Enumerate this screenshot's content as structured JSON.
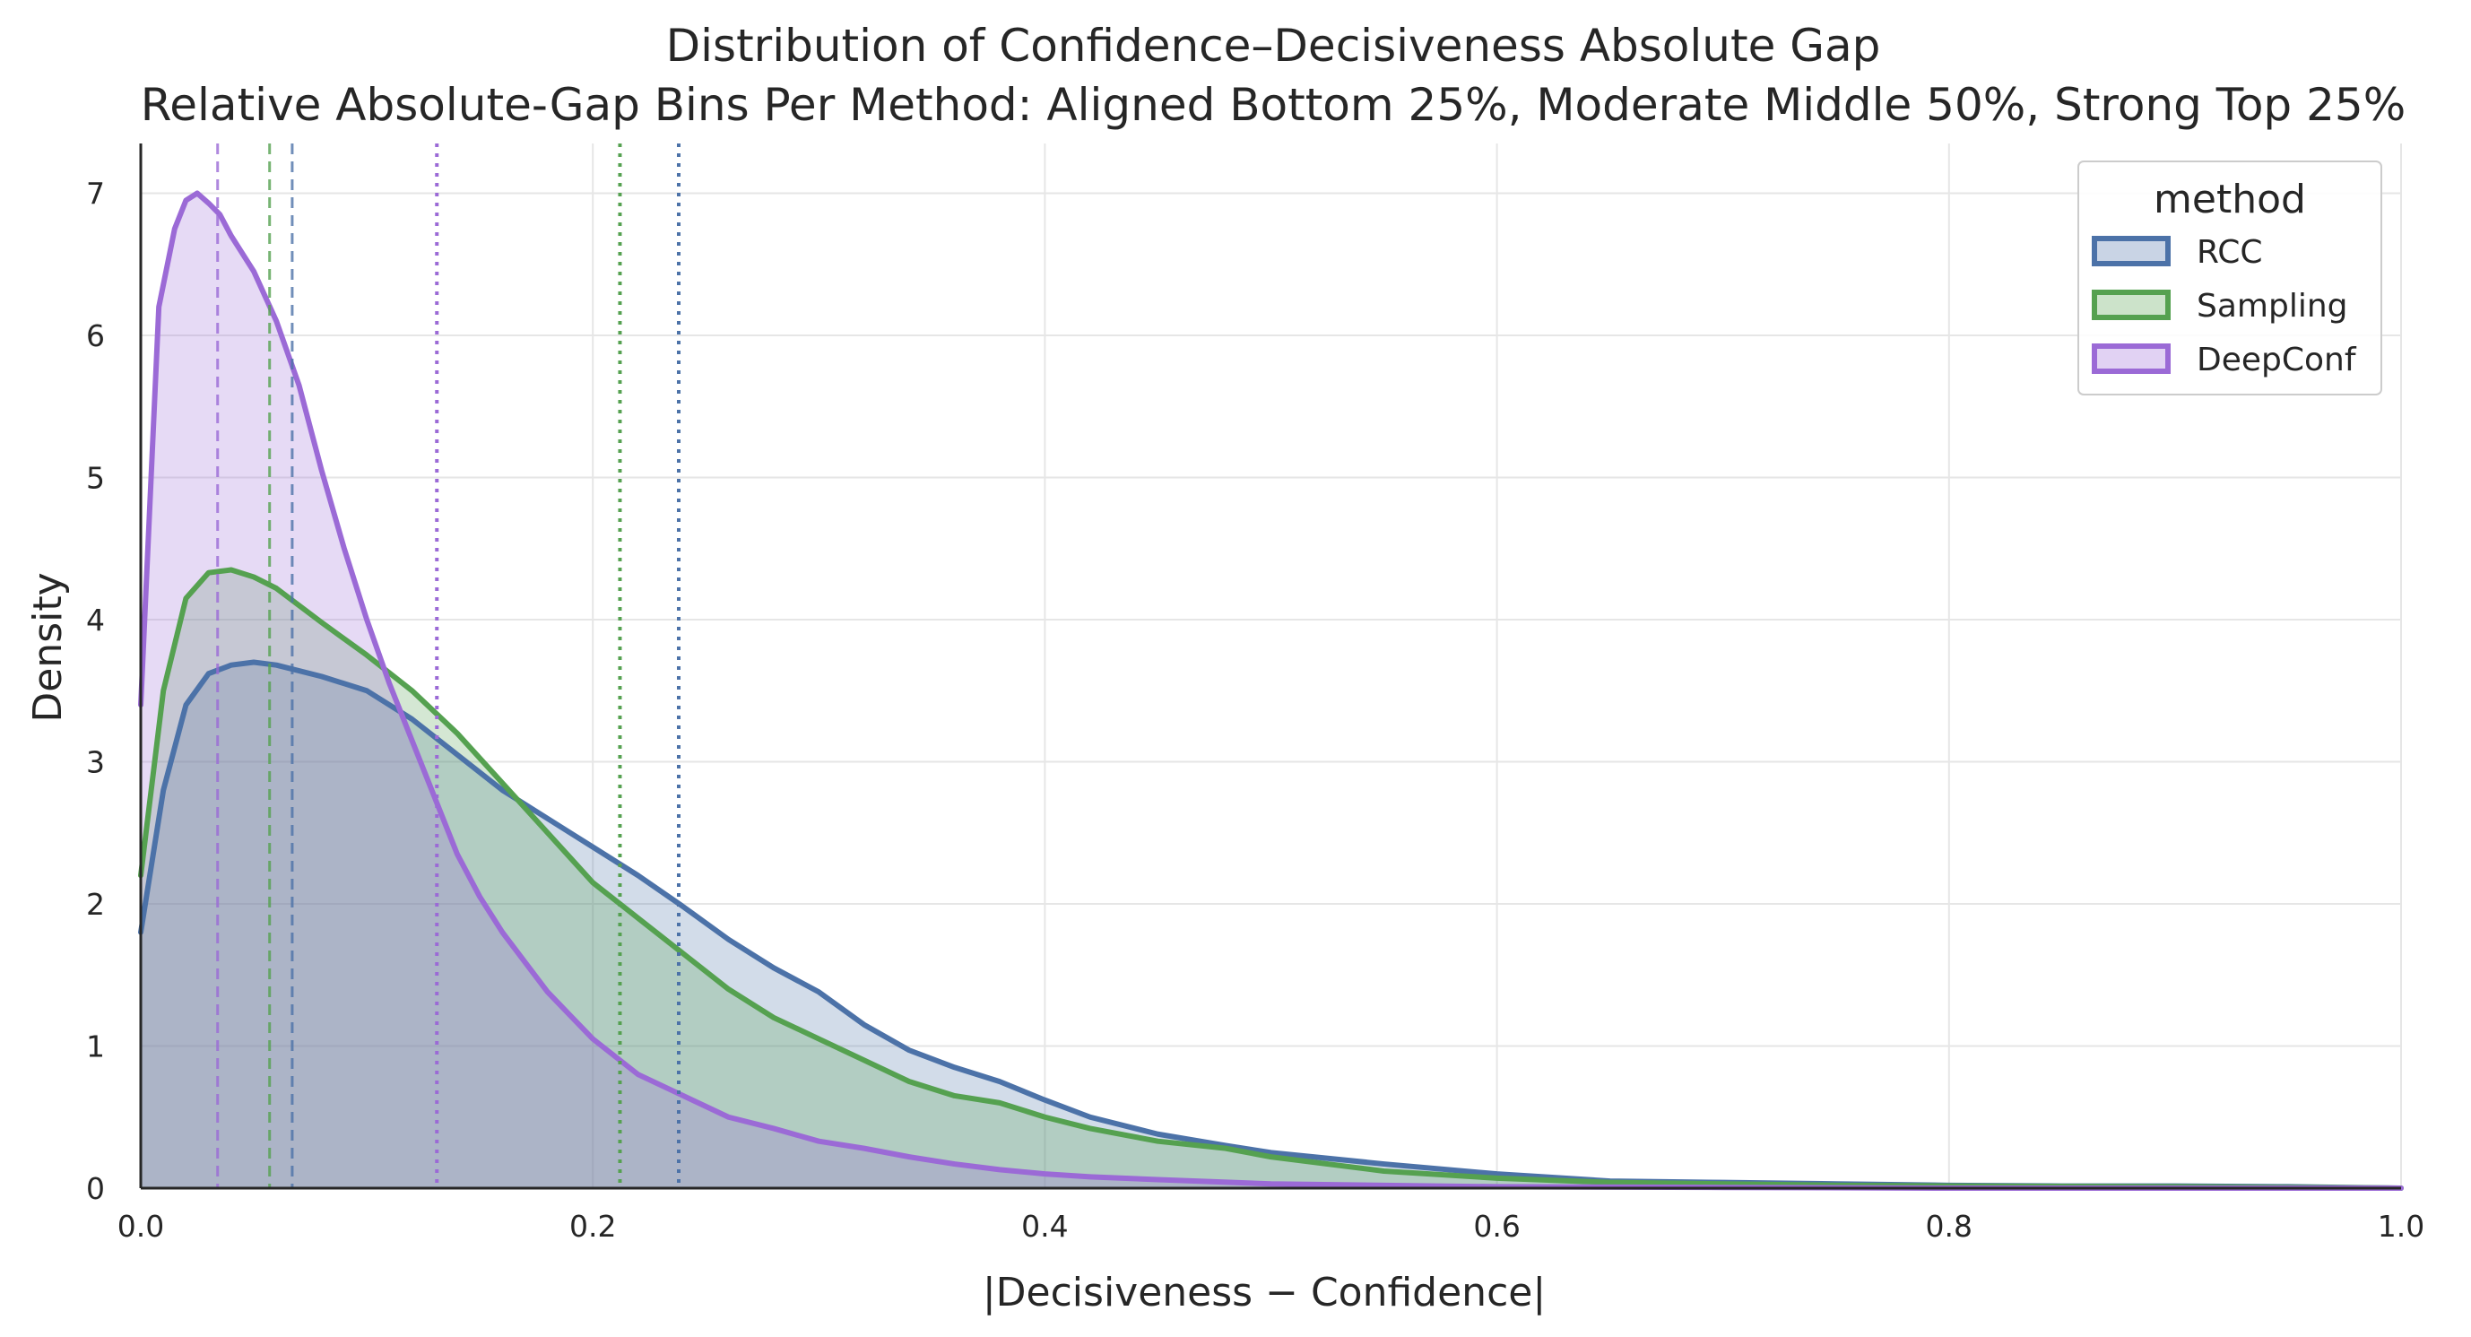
{
  "chart_data": {
    "type": "area",
    "title": "Distribution of Confidence–Decisiveness Absolute Gap",
    "subtitle": "Relative Absolute-Gap Bins Per Method: Aligned Bottom 25%, Moderate Middle 50%, Strong Top 25%",
    "xlabel": "|Decisiveness − Confidence|",
    "ylabel": "Density",
    "xlim": [
      0,
      1
    ],
    "ylim": [
      0,
      7.35
    ],
    "xticks": [
      "0.0",
      "0.2",
      "0.4",
      "0.6",
      "0.8",
      "1.0"
    ],
    "yticks": [
      "0",
      "1",
      "2",
      "3",
      "4",
      "5",
      "6",
      "7"
    ],
    "grid": true,
    "legend": {
      "title": "method",
      "placement": "top-right"
    },
    "series": [
      {
        "name": "RCC",
        "color": "#4c72a8",
        "fill_opacity": 0.25,
        "x": [
          0,
          0.01,
          0.02,
          0.03,
          0.04,
          0.05,
          0.06,
          0.08,
          0.1,
          0.12,
          0.14,
          0.16,
          0.18,
          0.2,
          0.22,
          0.24,
          0.26,
          0.28,
          0.3,
          0.32,
          0.34,
          0.36,
          0.38,
          0.4,
          0.42,
          0.45,
          0.48,
          0.5,
          0.55,
          0.6,
          0.65,
          0.7,
          0.75,
          0.8,
          0.85,
          0.9,
          0.95,
          1.0
        ],
        "y": [
          1.8,
          2.8,
          3.4,
          3.62,
          3.68,
          3.7,
          3.68,
          3.6,
          3.5,
          3.3,
          3.05,
          2.8,
          2.6,
          2.4,
          2.2,
          1.98,
          1.75,
          1.55,
          1.38,
          1.15,
          0.97,
          0.85,
          0.75,
          0.62,
          0.5,
          0.38,
          0.3,
          0.25,
          0.17,
          0.1,
          0.05,
          0.04,
          0.03,
          0.02,
          0.015,
          0.015,
          0.01,
          0.0
        ]
      },
      {
        "name": "Sampling",
        "color": "#55a150",
        "fill_opacity": 0.25,
        "x": [
          0,
          0.01,
          0.02,
          0.03,
          0.04,
          0.05,
          0.06,
          0.08,
          0.1,
          0.12,
          0.14,
          0.16,
          0.18,
          0.2,
          0.22,
          0.24,
          0.26,
          0.28,
          0.3,
          0.32,
          0.34,
          0.36,
          0.38,
          0.4,
          0.42,
          0.45,
          0.48,
          0.5,
          0.55,
          0.6,
          0.65,
          0.7,
          0.75,
          0.8,
          0.9,
          1.0
        ],
        "y": [
          2.2,
          3.5,
          4.15,
          4.33,
          4.35,
          4.3,
          4.22,
          3.98,
          3.75,
          3.5,
          3.2,
          2.85,
          2.5,
          2.15,
          1.9,
          1.65,
          1.4,
          1.2,
          1.05,
          0.9,
          0.75,
          0.65,
          0.6,
          0.5,
          0.42,
          0.33,
          0.28,
          0.22,
          0.12,
          0.07,
          0.04,
          0.03,
          0.02,
          0.015,
          0.01,
          0.0
        ]
      },
      {
        "name": "DeepConf",
        "color": "#9b6ad6",
        "fill_opacity": 0.25,
        "x": [
          0,
          0.008,
          0.015,
          0.02,
          0.025,
          0.03,
          0.035,
          0.04,
          0.05,
          0.06,
          0.07,
          0.08,
          0.09,
          0.1,
          0.11,
          0.12,
          0.13,
          0.14,
          0.15,
          0.16,
          0.18,
          0.2,
          0.22,
          0.24,
          0.26,
          0.28,
          0.3,
          0.32,
          0.34,
          0.36,
          0.38,
          0.4,
          0.42,
          0.45,
          0.5,
          0.55,
          0.6,
          0.7,
          0.8,
          1.0
        ],
        "y": [
          3.4,
          6.2,
          6.75,
          6.95,
          7.0,
          6.93,
          6.85,
          6.7,
          6.45,
          6.1,
          5.65,
          5.05,
          4.5,
          4.0,
          3.55,
          3.15,
          2.75,
          2.35,
          2.05,
          1.8,
          1.38,
          1.05,
          0.8,
          0.65,
          0.5,
          0.42,
          0.33,
          0.28,
          0.22,
          0.17,
          0.13,
          0.1,
          0.08,
          0.06,
          0.03,
          0.02,
          0.01,
          0.005,
          0.0,
          0.0
        ]
      }
    ],
    "reference_lines": [
      {
        "series": "DeepConf",
        "style": "dashed",
        "x": 0.034
      },
      {
        "series": "Sampling",
        "style": "dashed",
        "x": 0.057
      },
      {
        "series": "RCC",
        "style": "dashed",
        "x": 0.067
      },
      {
        "series": "DeepConf",
        "style": "dotted",
        "x": 0.131
      },
      {
        "series": "Sampling",
        "style": "dotted",
        "x": 0.212
      },
      {
        "series": "RCC",
        "style": "dotted",
        "x": 0.238
      }
    ]
  }
}
